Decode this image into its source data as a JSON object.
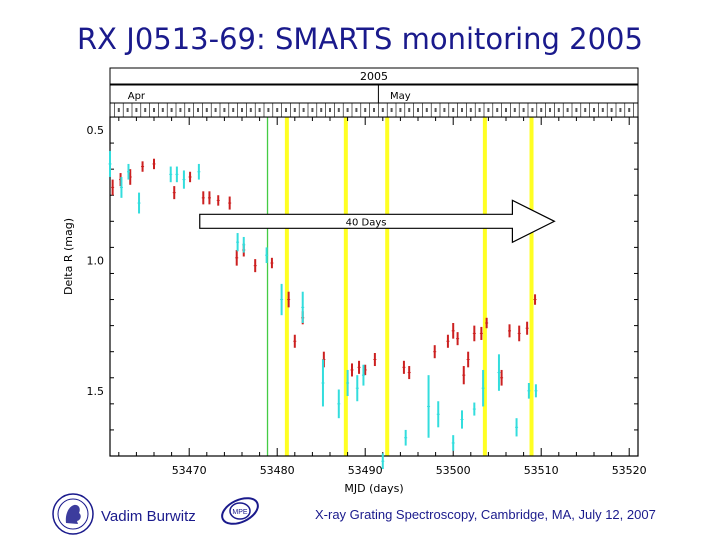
{
  "slide": {
    "title": "RX J0513-69: SMARTS monitoring 2005",
    "author": "Vadim Burwitz",
    "footer": "X-ray Grating Spectroscopy, Cambridge, MA, July 12, 2007",
    "logo_right_text": "MPE"
  },
  "colors": {
    "title": "#1a1a8c",
    "red_points": "#cc2020",
    "cyan_points": "#33dddd",
    "yellow_lines": "#ffff22",
    "green_line": "#44cc44",
    "arrow_fill": "#ffffff"
  },
  "chart_data": {
    "type": "scatter",
    "title": "",
    "xlabel": "MJD (days)",
    "ylabel": "Delta R (mag)",
    "xlim": [
      53461,
      53521
    ],
    "ylim": [
      1.75,
      0.45
    ],
    "y_inverted": true,
    "x_ticks": [
      53470,
      53480,
      53490,
      53500,
      53510,
      53520
    ],
    "y_ticks": [
      0.5,
      1.0,
      1.5
    ],
    "top_axis": {
      "year_label": "2005",
      "months": [
        {
          "label": "Apr",
          "mjd": 53464
        },
        {
          "label": "May",
          "mjd": 53494
        }
      ],
      "month_start_mjd": 53491.5,
      "day_ticks_start": 53460.5,
      "day_ticks_end": 53520.5
    },
    "vertical_lines": [
      {
        "mjd": 53478.9,
        "color": "green"
      },
      {
        "mjd": 53481.1,
        "color": "yellow"
      },
      {
        "mjd": 53487.8,
        "color": "yellow"
      },
      {
        "mjd": 53492.5,
        "color": "yellow"
      },
      {
        "mjd": 53503.6,
        "color": "yellow"
      },
      {
        "mjd": 53508.9,
        "color": "yellow"
      }
    ],
    "annotation": {
      "text": "40 Days",
      "x_start": 53471.2,
      "x_end": 53511.5,
      "y": 0.85
    },
    "series": [
      {
        "color": "red",
        "points": [
          {
            "x": 53461.3,
            "y": 0.72,
            "err": 0.03
          },
          {
            "x": 53462.2,
            "y": 0.69,
            "err": 0.025
          },
          {
            "x": 53463.3,
            "y": 0.68,
            "err": 0.03
          },
          {
            "x": 53464.7,
            "y": 0.64,
            "err": 0.02
          },
          {
            "x": 53466.0,
            "y": 0.63,
            "err": 0.02
          },
          {
            "x": 53468.3,
            "y": 0.74,
            "err": 0.025
          },
          {
            "x": 53470.1,
            "y": 0.68,
            "err": 0.02
          },
          {
            "x": 53471.6,
            "y": 0.76,
            "err": 0.025
          },
          {
            "x": 53472.3,
            "y": 0.76,
            "err": 0.025
          },
          {
            "x": 53473.3,
            "y": 0.77,
            "err": 0.02
          },
          {
            "x": 53474.6,
            "y": 0.78,
            "err": 0.025
          },
          {
            "x": 53475.4,
            "y": 0.99,
            "err": 0.03
          },
          {
            "x": 53476.2,
            "y": 0.96,
            "err": 0.025
          },
          {
            "x": 53477.5,
            "y": 1.02,
            "err": 0.025
          },
          {
            "x": 53479.4,
            "y": 1.01,
            "err": 0.02
          },
          {
            "x": 53481.3,
            "y": 1.15,
            "err": 0.03
          },
          {
            "x": 53482.0,
            "y": 1.31,
            "err": 0.025
          },
          {
            "x": 53482.9,
            "y": 1.22,
            "err": 0.025
          },
          {
            "x": 53485.3,
            "y": 1.38,
            "err": 0.03
          },
          {
            "x": 53488.5,
            "y": 1.42,
            "err": 0.025
          },
          {
            "x": 53489.3,
            "y": 1.41,
            "err": 0.025
          },
          {
            "x": 53490.0,
            "y": 1.42,
            "err": 0.02
          },
          {
            "x": 53491.1,
            "y": 1.38,
            "err": 0.025
          },
          {
            "x": 53494.4,
            "y": 1.41,
            "err": 0.025
          },
          {
            "x": 53495.0,
            "y": 1.43,
            "err": 0.025
          },
          {
            "x": 53497.9,
            "y": 1.35,
            "err": 0.025
          },
          {
            "x": 53499.4,
            "y": 1.31,
            "err": 0.025
          },
          {
            "x": 53500.0,
            "y": 1.27,
            "err": 0.03
          },
          {
            "x": 53500.5,
            "y": 1.3,
            "err": 0.025
          },
          {
            "x": 53501.2,
            "y": 1.44,
            "err": 0.035
          },
          {
            "x": 53501.7,
            "y": 1.38,
            "err": 0.03
          },
          {
            "x": 53502.4,
            "y": 1.28,
            "err": 0.03
          },
          {
            "x": 53503.2,
            "y": 1.28,
            "err": 0.025
          },
          {
            "x": 53503.8,
            "y": 1.24,
            "err": 0.02
          },
          {
            "x": 53505.5,
            "y": 1.45,
            "err": 0.03
          },
          {
            "x": 53506.4,
            "y": 1.27,
            "err": 0.025
          },
          {
            "x": 53507.5,
            "y": 1.28,
            "err": 0.03
          },
          {
            "x": 53508.4,
            "y": 1.26,
            "err": 0.025
          },
          {
            "x": 53509.3,
            "y": 1.15,
            "err": 0.02
          }
        ]
      },
      {
        "color": "cyan",
        "points": [
          {
            "x": 53461.0,
            "y": 0.63,
            "err": 0.05
          },
          {
            "x": 53462.3,
            "y": 0.72,
            "err": 0.04
          },
          {
            "x": 53463.1,
            "y": 0.66,
            "err": 0.03
          },
          {
            "x": 53464.3,
            "y": 0.78,
            "err": 0.04
          },
          {
            "x": 53467.9,
            "y": 0.67,
            "err": 0.03
          },
          {
            "x": 53468.6,
            "y": 0.67,
            "err": 0.03
          },
          {
            "x": 53469.4,
            "y": 0.69,
            "err": 0.035
          },
          {
            "x": 53471.1,
            "y": 0.66,
            "err": 0.03
          },
          {
            "x": 53475.5,
            "y": 0.93,
            "err": 0.035
          },
          {
            "x": 53476.2,
            "y": 0.94,
            "err": 0.03
          },
          {
            "x": 53478.8,
            "y": 0.98,
            "err": 0.03
          },
          {
            "x": 53480.5,
            "y": 1.15,
            "err": 0.06
          },
          {
            "x": 53482.9,
            "y": 1.18,
            "err": 0.06
          },
          {
            "x": 53485.2,
            "y": 1.47,
            "err": 0.09
          },
          {
            "x": 53487.0,
            "y": 1.55,
            "err": 0.055
          },
          {
            "x": 53488.0,
            "y": 1.47,
            "err": 0.05
          },
          {
            "x": 53489.1,
            "y": 1.49,
            "err": 0.05
          },
          {
            "x": 53489.8,
            "y": 1.44,
            "err": 0.04
          },
          {
            "x": 53492.0,
            "y": 1.77,
            "err": 0.03
          },
          {
            "x": 53494.6,
            "y": 1.68,
            "err": 0.03
          },
          {
            "x": 53497.2,
            "y": 1.56,
            "err": 0.12
          },
          {
            "x": 53498.3,
            "y": 1.59,
            "err": 0.05
          },
          {
            "x": 53500.0,
            "y": 1.7,
            "err": 0.03
          },
          {
            "x": 53501.0,
            "y": 1.61,
            "err": 0.035
          },
          {
            "x": 53502.4,
            "y": 1.57,
            "err": 0.025
          },
          {
            "x": 53503.4,
            "y": 1.49,
            "err": 0.07
          },
          {
            "x": 53505.2,
            "y": 1.43,
            "err": 0.07
          },
          {
            "x": 53507.2,
            "y": 1.64,
            "err": 0.035
          },
          {
            "x": 53508.6,
            "y": 1.5,
            "err": 0.03
          },
          {
            "x": 53509.4,
            "y": 1.5,
            "err": 0.025
          }
        ]
      }
    ]
  }
}
